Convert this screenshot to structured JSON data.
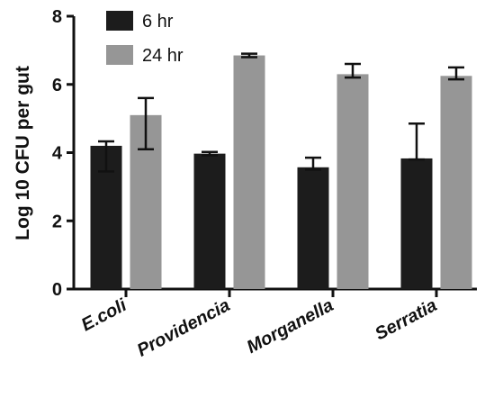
{
  "chart_data": {
    "type": "bar",
    "title": "",
    "xlabel": "",
    "ylabel": "Log 10 CFU per gut",
    "ylim": [
      0,
      8
    ],
    "yticks": [
      "0",
      "2",
      "4",
      "6",
      "8"
    ],
    "categories": [
      "E.coli",
      "Providencia",
      "Morganella",
      "Serratia"
    ],
    "legend_position": "top-left",
    "grid": false,
    "series": [
      {
        "name": "6 hr",
        "color": "#1c1c1c",
        "values": [
          4.2,
          3.97,
          3.57,
          3.83
        ],
        "error_upper": [
          4.33,
          4.02,
          3.85,
          4.85
        ],
        "error_lower": [
          3.45,
          3.92,
          3.5,
          3.8
        ]
      },
      {
        "name": "24 hr",
        "color": "#969696",
        "values": [
          5.1,
          6.85,
          6.3,
          6.25
        ],
        "error_upper": [
          5.6,
          6.9,
          6.6,
          6.5
        ],
        "error_lower": [
          4.1,
          6.8,
          6.2,
          6.15
        ]
      }
    ]
  }
}
